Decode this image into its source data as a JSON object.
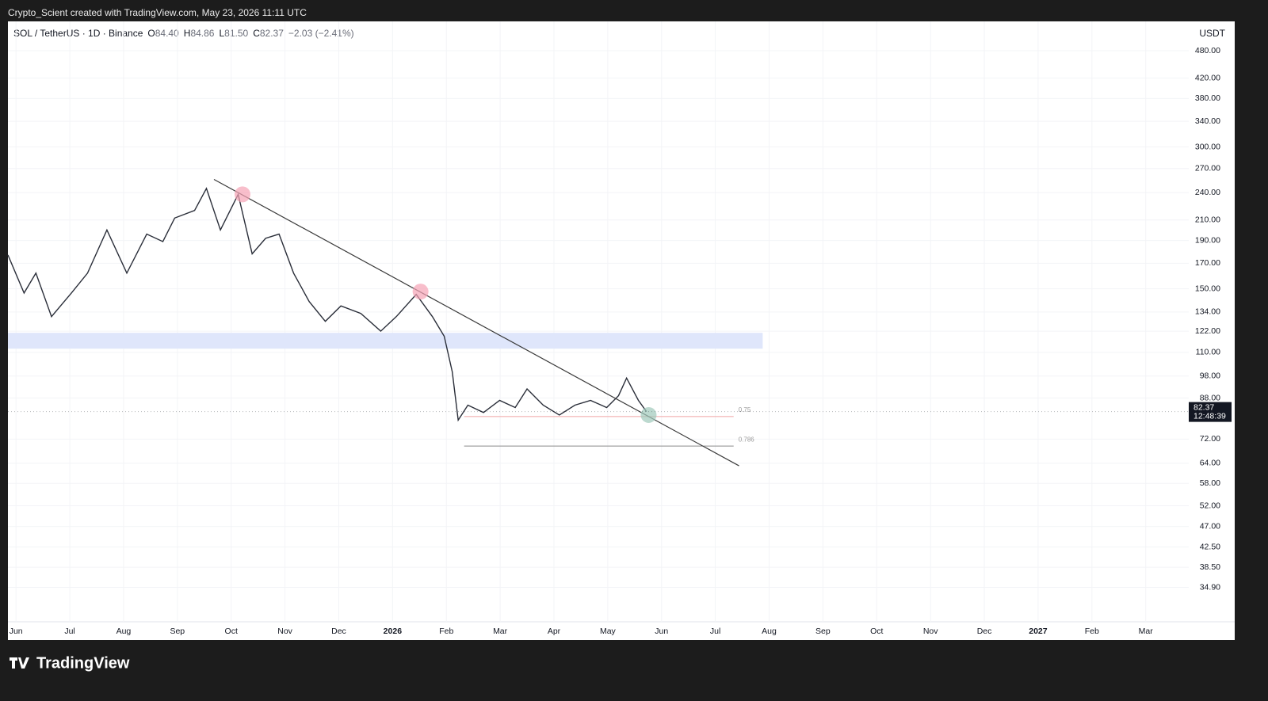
{
  "header": {
    "credit": "Crypto_Scient created with TradingView.com, May 23, 2026 11:11 UTC",
    "logo": "TradingView"
  },
  "chart_data": {
    "type": "line",
    "title": "SOL / TetherUS · 1D · Binance",
    "ohlc_legend": [
      {
        "label": "O",
        "value": "84.40"
      },
      {
        "label": "H",
        "value": "84.86"
      },
      {
        "label": "L",
        "value": "81.50"
      },
      {
        "label": "C",
        "value": "82.37"
      }
    ],
    "change": "−2.03 (−2.41%)",
    "currency": "USDT",
    "log_scale": true,
    "grid": true,
    "series": [
      {
        "name": "SOL / TetherUS",
        "color": "#2a2e39",
        "x": [
          -0.15,
          0.15,
          0.37,
          0.66,
          1.03,
          1.33,
          1.69,
          2.06,
          2.43,
          2.73,
          2.95,
          3.32,
          3.54,
          3.8,
          4.13,
          4.39,
          4.64,
          4.89,
          5.16,
          5.45,
          5.75,
          6.04,
          6.41,
          6.78,
          7.07,
          7.44,
          7.74,
          7.96,
          8.11,
          8.22,
          8.4,
          8.69,
          8.99,
          9.28,
          9.5,
          9.8,
          10.1,
          10.39,
          10.68,
          10.98,
          11.2,
          11.35,
          11.57,
          11.72
        ],
        "values": [
          177,
          147,
          162,
          131,
          147,
          162,
          200,
          162,
          196,
          189,
          212,
          220,
          245,
          200,
          238,
          178,
          192,
          196,
          162,
          141,
          128,
          138,
          133,
          122,
          131,
          146,
          131,
          119,
          100,
          79,
          85,
          82,
          87,
          84,
          92,
          85,
          81,
          85,
          87,
          84,
          89,
          97,
          87,
          82.37
        ]
      }
    ],
    "last_price": {
      "value": 82.37,
      "label": "82.37"
    },
    "countdown": "12:48:39",
    "trendline": {
      "x": [
        3.68,
        13.44
      ],
      "values": [
        256,
        63.2
      ],
      "color": "#3a3a3a"
    },
    "zone": {
      "x": [
        -0.15,
        13.88
      ],
      "values": [
        112,
        121
      ],
      "color": "#dfe6fb"
    },
    "fib_levels": [
      {
        "label": "0.75",
        "value": 80.4,
        "color": "#f0a5a5"
      },
      {
        "label": "0.786",
        "value": 69.6,
        "color": "#8a8a8a"
      }
    ],
    "fib_x": [
      8.33,
      13.34
    ],
    "markers": [
      {
        "x": 4.21,
        "value": 238,
        "color": "#f5a3b5"
      },
      {
        "x": 7.52,
        "value": 148,
        "color": "#f5a3b5"
      },
      {
        "x": 11.76,
        "value": 81,
        "color": "#9fc9bb"
      }
    ],
    "xlim": [
      -0.15,
      21.8
    ],
    "ylim": [
      29.5,
      554
    ],
    "xticks": [
      {
        "value": 0,
        "label": "Jun"
      },
      {
        "value": 1,
        "label": "Jul"
      },
      {
        "value": 2,
        "label": "Aug"
      },
      {
        "value": 3,
        "label": "Sep"
      },
      {
        "value": 4,
        "label": "Oct"
      },
      {
        "value": 5,
        "label": "Nov"
      },
      {
        "value": 6,
        "label": "Dec"
      },
      {
        "value": 7,
        "label": "2026"
      },
      {
        "value": 8,
        "label": "Feb"
      },
      {
        "value": 9,
        "label": "Mar"
      },
      {
        "value": 10,
        "label": "Apr"
      },
      {
        "value": 11,
        "label": "May"
      },
      {
        "value": 12,
        "label": "Jun"
      },
      {
        "value": 13,
        "label": "Jul"
      },
      {
        "value": 14,
        "label": "Aug"
      },
      {
        "value": 15,
        "label": "Sep"
      },
      {
        "value": 16,
        "label": "Oct"
      },
      {
        "value": 17,
        "label": "Nov"
      },
      {
        "value": 18,
        "label": "Dec"
      },
      {
        "value": 19,
        "label": "2027"
      },
      {
        "value": 20,
        "label": "Feb"
      },
      {
        "value": 21,
        "label": "Mar"
      }
    ],
    "yticks": [
      {
        "value": 480,
        "label": "480.00"
      },
      {
        "value": 420,
        "label": "420.00"
      },
      {
        "value": 380,
        "label": "380.00"
      },
      {
        "value": 340,
        "label": "340.00"
      },
      {
        "value": 300,
        "label": "300.00"
      },
      {
        "value": 270,
        "label": "270.00"
      },
      {
        "value": 240,
        "label": "240.00"
      },
      {
        "value": 210,
        "label": "210.00"
      },
      {
        "value": 190,
        "label": "190.00"
      },
      {
        "value": 170,
        "label": "170.00"
      },
      {
        "value": 150,
        "label": "150.00"
      },
      {
        "value": 134,
        "label": "134.00"
      },
      {
        "value": 122,
        "label": "122.00"
      },
      {
        "value": 110,
        "label": "110.00"
      },
      {
        "value": 98,
        "label": "98.00"
      },
      {
        "value": 88,
        "label": "88.00"
      },
      {
        "value": 72,
        "label": "72.00"
      },
      {
        "value": 64,
        "label": "64.00"
      },
      {
        "value": 58,
        "label": "58.00"
      },
      {
        "value": 52,
        "label": "52.00"
      },
      {
        "value": 47,
        "label": "47.00"
      },
      {
        "value": 42.5,
        "label": "42.50"
      },
      {
        "value": 38.5,
        "label": "38.50"
      },
      {
        "value": 34.9,
        "label": "34.90"
      }
    ]
  }
}
